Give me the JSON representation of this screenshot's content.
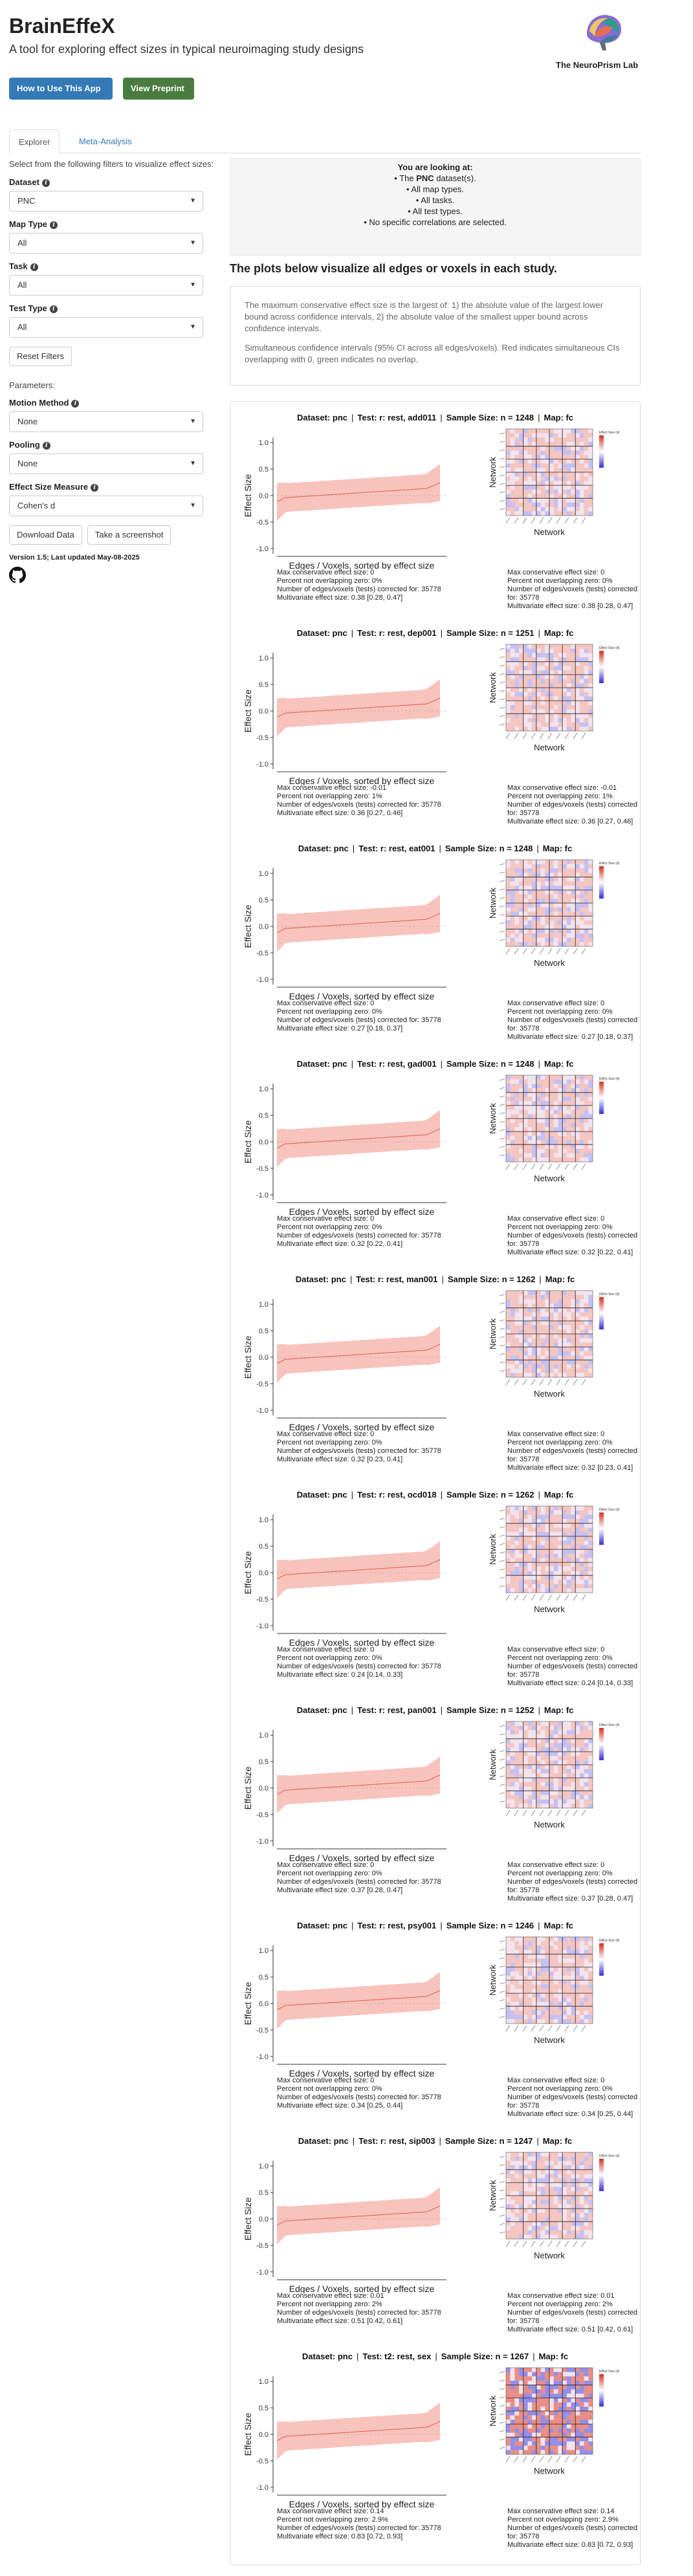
{
  "header": {
    "title": "BrainEffeX",
    "subtitle": "A tool for exploring effect sizes in typical neuroimaging study designs",
    "how_to_button": "How to Use This App",
    "preprint_button": "View Preprint",
    "lab_name": "The NeuroPrism Lab"
  },
  "tabs": [
    {
      "label": "Explorer",
      "active": true
    },
    {
      "label": "Meta-Analysis",
      "active": false
    }
  ],
  "sidebar": {
    "intro": "Select from the following filters to visualize effect sizes:",
    "filters": [
      {
        "label": "Dataset",
        "value": "PNC"
      },
      {
        "label": "Map Type",
        "value": "All"
      },
      {
        "label": "Task",
        "value": "All"
      },
      {
        "label": "Test Type",
        "value": "All"
      }
    ],
    "reset_button": "Reset Filters",
    "parameters_label": "Parameters:",
    "params": [
      {
        "label": "Motion Method",
        "value": "None"
      },
      {
        "label": "Pooling",
        "value": "None"
      },
      {
        "label": "Effect Size Measure",
        "value": "Cohen's d"
      }
    ],
    "download_button": "Download Data",
    "screenshot_button": "Take a screenshot",
    "version": "Version 1.5; Last updated May-08-2025"
  },
  "summary": {
    "heading": "You are looking at:",
    "line1_prefix": "• The ",
    "line1_bold": "PNC",
    "line1_suffix": " dataset(s).",
    "lines": [
      "• All map types.",
      "• All tasks.",
      "• All test types.",
      "• No specific correlations are selected."
    ]
  },
  "main": {
    "heading": "The plots below visualize all edges or voxels in each study.",
    "desc1": "The maximum conservative effect size is the largest of: 1) the absolute value of the largest lower bound across confidence intervals, 2) the absolute value of the smallest upper bound across confidence intervals.",
    "desc2": "Simultaneous confidence intervals (95% CI across all edges/voxels). Red indicates simultaneous CIs overlapping with 0, green indicates no overlap."
  },
  "labels": {
    "ylabel": "Effect Size",
    "xlabel": "Edges / Voxels, sorted by effect size",
    "heat_ylabel": "Network",
    "heat_xlabel": "Network",
    "colorbar_title": "Effect Size (d)",
    "yticks": [
      "1.0",
      "0.5",
      "0.0",
      "-0.5",
      "-1.0"
    ],
    "dataset_prefix": "Dataset: pnc",
    "sample_prefix": "Sample Size: n = ",
    "map_prefix": "Map: fc"
  },
  "studies": [
    {
      "test": "Test: r: rest, add011",
      "n": "1248",
      "stats": [
        "Max conservative effect size: 0",
        "Percent not overlapping zero: 0%",
        "Number of edges/voxels (tests) corrected for: 35778",
        "Multivariate effect size: 0.38 [0.28, 0.47]"
      ]
    },
    {
      "test": "Test: r: rest, dep001",
      "n": "1251",
      "stats": [
        "Max conservative effect size: -0.01",
        "Percent not overlapping zero: 1%",
        "Number of edges/voxels (tests) corrected for: 35778",
        "Multivariate effect size: 0.36 [0.27, 0.46]"
      ]
    },
    {
      "test": "Test: r: rest, eat001",
      "n": "1248",
      "stats": [
        "Max conservative effect size: 0",
        "Percent not overlapping zero: 0%",
        "Number of edges/voxels (tests) corrected for: 35778",
        "Multivariate effect size: 0.27 [0.18, 0.37]"
      ]
    },
    {
      "test": "Test: r: rest, gad001",
      "n": "1248",
      "stats": [
        "Max conservative effect size: 0",
        "Percent not overlapping zero: 0%",
        "Number of edges/voxels (tests) corrected for: 35778",
        "Multivariate effect size: 0.32 [0.22, 0.41]"
      ]
    },
    {
      "test": "Test: r: rest, man001",
      "n": "1262",
      "stats": [
        "Max conservative effect size: 0",
        "Percent not overlapping zero: 0%",
        "Number of edges/voxels (tests) corrected for: 35778",
        "Multivariate effect size: 0.32 [0.23, 0.41]"
      ]
    },
    {
      "test": "Test: r: rest, ocd018",
      "n": "1262",
      "stats": [
        "Max conservative effect size: 0",
        "Percent not overlapping zero: 0%",
        "Number of edges/voxels (tests) corrected for: 35778",
        "Multivariate effect size: 0.24 [0.14, 0.33]"
      ]
    },
    {
      "test": "Test: r: rest, pan001",
      "n": "1252",
      "stats": [
        "Max conservative effect size: 0",
        "Percent not overlapping zero: 0%",
        "Number of edges/voxels (tests) corrected for: 35778",
        "Multivariate effect size: 0.37 [0.28, 0.47]"
      ]
    },
    {
      "test": "Test: r: rest, psy001",
      "n": "1246",
      "stats": [
        "Max conservative effect size: 0",
        "Percent not overlapping zero: 0%",
        "Number of edges/voxels (tests) corrected for: 35778",
        "Multivariate effect size: 0.34 [0.25, 0.44]"
      ]
    },
    {
      "test": "Test: r: rest, sip003",
      "n": "1247",
      "stats": [
        "Max conservative effect size: 0.01",
        "Percent not overlapping zero: 2%",
        "Number of edges/voxels (tests) corrected for: 35778",
        "Multivariate effect size: 0.51 [0.42, 0.61]"
      ]
    },
    {
      "test": "Test: t2: rest, sex",
      "n": "1267",
      "stats": [
        "Max conservative effect size: 0.14",
        "Percent not overlapping zero: 2.9%",
        "Number of edges/voxels (tests) corrected for: 35778",
        "Multivariate effect size: 0.83 [0.72, 0.93]"
      ]
    }
  ],
  "colors": {
    "ribbon_fill": "#f7b8b0",
    "ribbon_line": "#e05a4e",
    "heat_pos": "#d7301f",
    "heat_neg": "#3a2fd6",
    "primary": "#337ab7",
    "success": "#4a7c3f"
  }
}
